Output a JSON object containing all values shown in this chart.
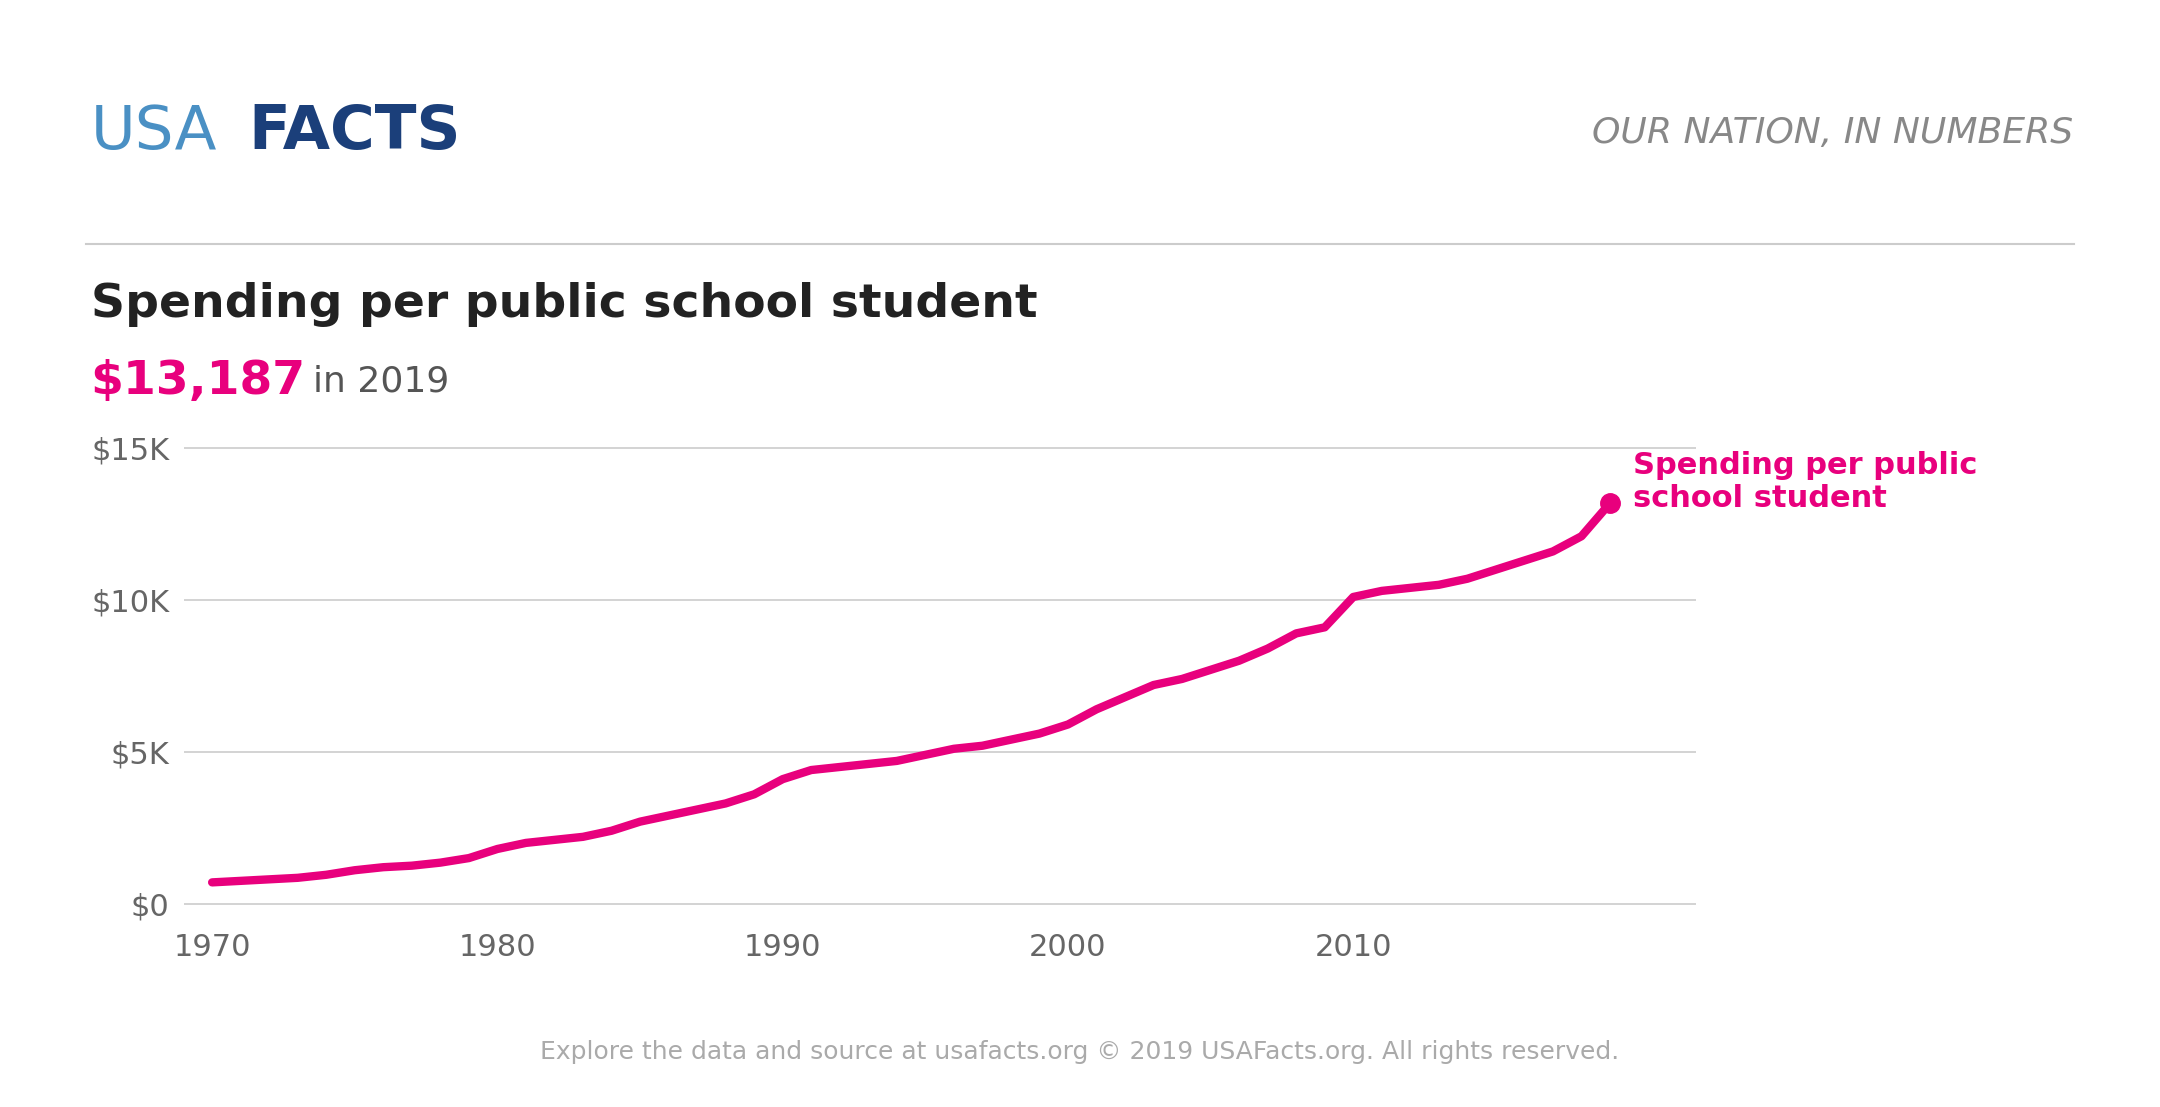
{
  "years": [
    1970,
    1971,
    1972,
    1973,
    1974,
    1975,
    1976,
    1977,
    1978,
    1979,
    1980,
    1981,
    1982,
    1983,
    1984,
    1985,
    1986,
    1987,
    1988,
    1989,
    1990,
    1991,
    1992,
    1993,
    1994,
    1995,
    1996,
    1997,
    1998,
    1999,
    2000,
    2001,
    2002,
    2003,
    2004,
    2005,
    2006,
    2007,
    2008,
    2009,
    2010,
    2011,
    2012,
    2013,
    2014,
    2015,
    2016,
    2017,
    2018,
    2019
  ],
  "values": [
    700,
    750,
    800,
    850,
    950,
    1100,
    1200,
    1250,
    1350,
    1500,
    1800,
    2000,
    2100,
    2200,
    2400,
    2700,
    2900,
    3100,
    3300,
    3600,
    4100,
    4400,
    4500,
    4600,
    4700,
    4900,
    5100,
    5200,
    5400,
    5600,
    5900,
    6400,
    6800,
    7200,
    7400,
    7700,
    8000,
    8400,
    8900,
    9100,
    10100,
    10300,
    10400,
    10500,
    10700,
    11000,
    11300,
    11600,
    12100,
    13187
  ],
  "title": "Spending per public school student",
  "subtitle_value": "$13,187",
  "subtitle_year": "in 2019",
  "line_color": "#E8007D",
  "dot_color": "#E8007D",
  "annotation_text": "Spending per public\nschool student",
  "annotation_color": "#E8007D",
  "yticks": [
    0,
    5000,
    10000,
    15000
  ],
  "ytick_labels": [
    "$0",
    "$5K",
    "$10K",
    "$15K"
  ],
  "xticks": [
    1970,
    1980,
    1990,
    2000,
    2010
  ],
  "xlim": [
    1969,
    2022
  ],
  "ylim": [
    -500,
    17000
  ],
  "background_color": "#ffffff",
  "grid_color": "#cccccc",
  "usa_text": "USA",
  "facts_text": "FACTS",
  "logo_color_light": "#4472c4",
  "logo_color_dark": "#1a3a6b",
  "tagline": "OUR NATION, IN NUMBERS",
  "tagline_color": "#888888",
  "footer_text": "Explore the data and source at usafacts.org © 2019 USAFacts.org. All rights reserved.",
  "footer_color": "#aaaaaa",
  "title_color": "#222222",
  "subtitle_value_color": "#E8007D",
  "subtitle_year_color": "#555555",
  "tick_color": "#666666",
  "line_width": 6.0
}
